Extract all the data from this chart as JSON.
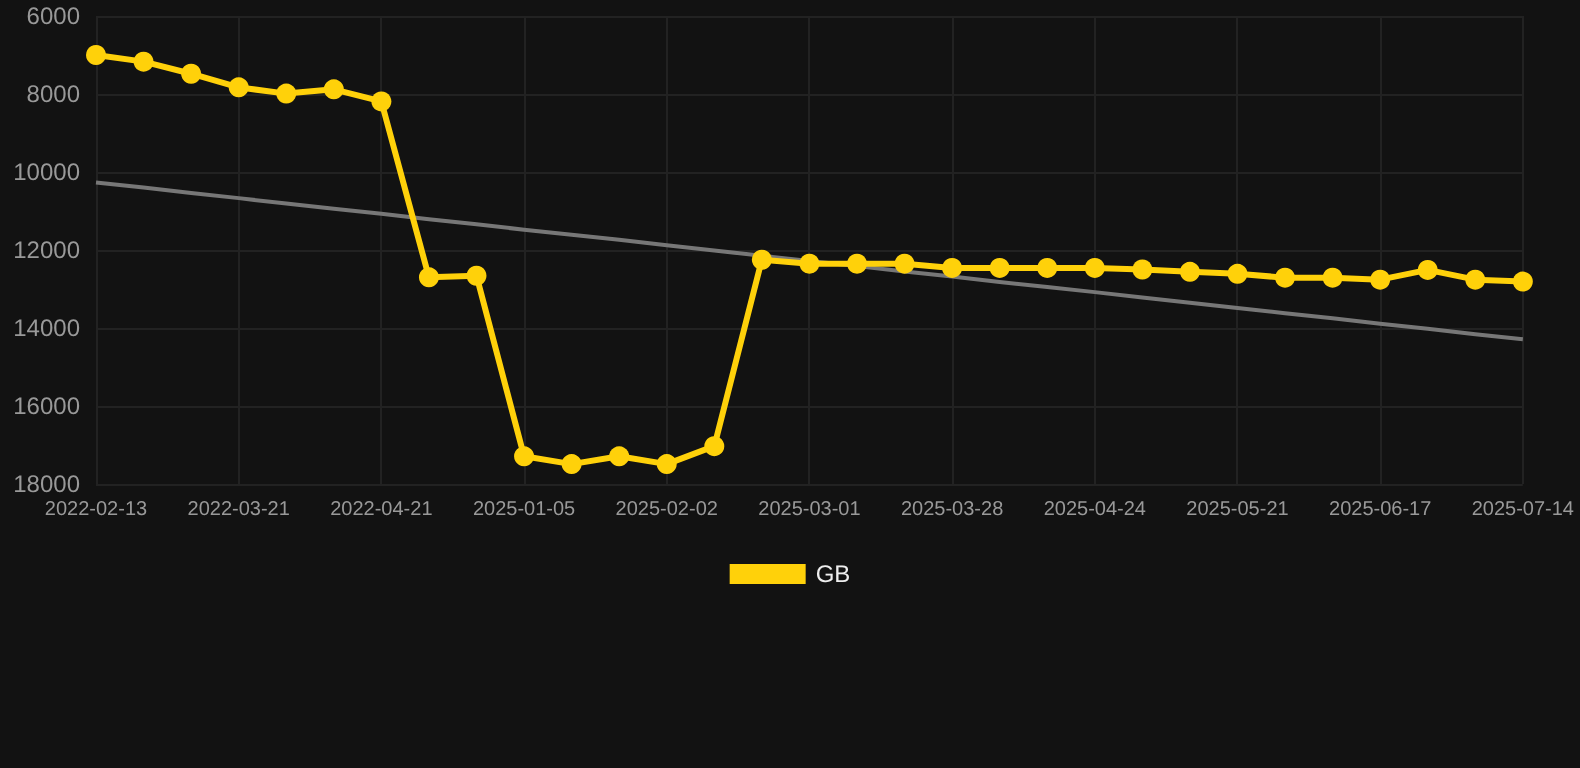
{
  "chart_data": {
    "type": "line",
    "categories": [
      "2022-02-13",
      null,
      null,
      "2022-03-21",
      null,
      null,
      "2022-04-21",
      null,
      null,
      "2025-01-05",
      null,
      null,
      "2025-02-02",
      null,
      null,
      "2025-03-01",
      null,
      null,
      "2025-03-28",
      null,
      null,
      "2025-04-24",
      null,
      null,
      "2025-05-21",
      null,
      null,
      "2025-06-17",
      null,
      null,
      "2025-07-14"
    ],
    "series": [
      {
        "name": "GB",
        "color": "#ffd10a",
        "marker": "circle",
        "values": [
          7000,
          7170,
          7480,
          7830,
          7990,
          7880,
          8190,
          12700,
          12660,
          17290,
          17490,
          17290,
          17490,
          17030,
          12250,
          12350,
          12350,
          12350,
          12460,
          12460,
          12460,
          12460,
          12500,
          12560,
          12610,
          12710,
          12710,
          12760,
          12510,
          12760,
          12810
        ]
      },
      {
        "type": "line",
        "color": "#777777",
        "marker": "none",
        "values": [
          10270,
          10400,
          10540,
          10670,
          10810,
          10940,
          11070,
          11210,
          11340,
          11480,
          11610,
          11740,
          11880,
          12010,
          12150,
          12280,
          12410,
          12550,
          12680,
          12820,
          12950,
          13080,
          13220,
          13350,
          13490,
          13620,
          13750,
          13890,
          14020,
          14160,
          14290
        ]
      }
    ],
    "ylim": [
      18000,
      6000
    ],
    "yticks": [
      {
        "value": 6000,
        "label": "6000"
      },
      {
        "value": 8000,
        "label": "8000"
      },
      {
        "value": 10000,
        "label": "10000"
      },
      {
        "value": 12000,
        "label": "12000"
      },
      {
        "value": 14000,
        "label": "14000"
      },
      {
        "value": 16000,
        "label": "16000"
      },
      {
        "value": 18000,
        "label": "18000"
      }
    ],
    "grid": true,
    "legend": "bottom"
  }
}
